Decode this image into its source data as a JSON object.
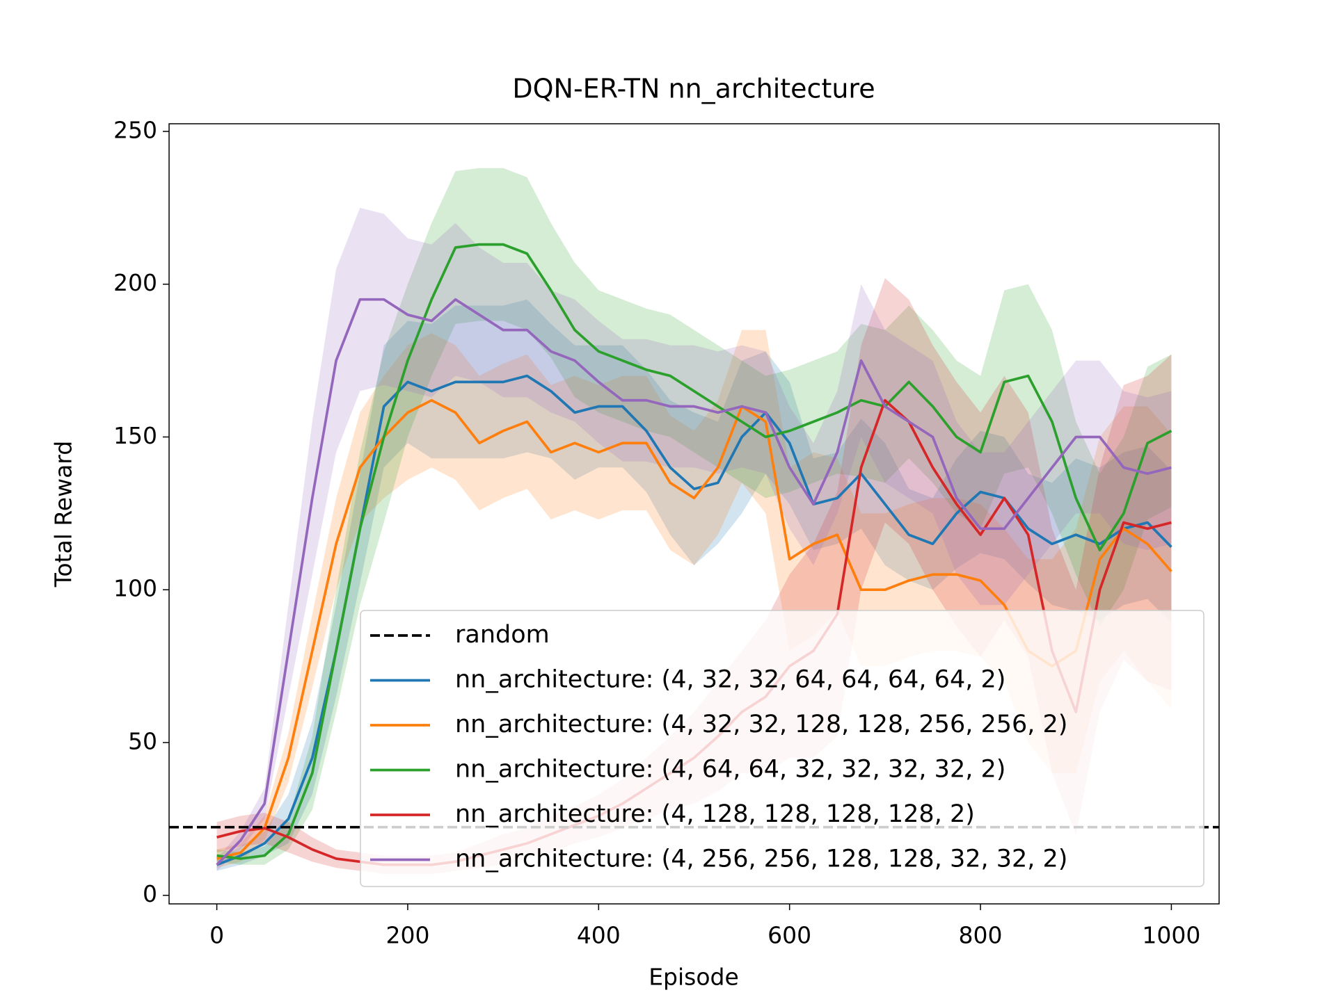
{
  "chart_data": {
    "type": "line",
    "title": "DQN-ER-TN nn_architecture",
    "x_label": "Episode",
    "y_label": "Total Reward",
    "x": [
      0,
      25,
      50,
      75,
      100,
      125,
      150,
      175,
      200,
      225,
      250,
      275,
      300,
      325,
      350,
      375,
      400,
      425,
      450,
      475,
      500,
      525,
      550,
      575,
      600,
      625,
      650,
      675,
      700,
      725,
      750,
      775,
      800,
      825,
      850,
      875,
      900,
      925,
      950,
      975,
      1000
    ],
    "baseline": {
      "name": "random",
      "value": 22.3,
      "color": "#000000"
    },
    "series": [
      {
        "name": "nn_architecture: (4, 32, 32, 64, 64, 64, 64, 2)",
        "color": "#1f77b4",
        "values": [
          10,
          13,
          17,
          25,
          45,
          80,
          120,
          160,
          168,
          165,
          168,
          168,
          168,
          170,
          165,
          158,
          160,
          160,
          152,
          140,
          133,
          135,
          150,
          158,
          148,
          128,
          130,
          138,
          128,
          118,
          115,
          125,
          132,
          130,
          120,
          115,
          118,
          115,
          120,
          122,
          114
        ],
        "errors": [
          2,
          3,
          4,
          8,
          12,
          15,
          18,
          20,
          20,
          22,
          25,
          25,
          25,
          25,
          22,
          22,
          20,
          20,
          20,
          22,
          25,
          20,
          25,
          20,
          20,
          15,
          15,
          18,
          20,
          15,
          15,
          18,
          20,
          20,
          18,
          20,
          25,
          25,
          25,
          25,
          25
        ]
      },
      {
        "name": "nn_architecture: (4, 32, 32, 128, 128, 256, 256, 2)",
        "color": "#ff7f0e",
        "values": [
          12,
          14,
          22,
          45,
          80,
          115,
          140,
          150,
          158,
          162,
          158,
          148,
          152,
          155,
          145,
          148,
          145,
          148,
          148,
          135,
          130,
          140,
          160,
          155,
          110,
          115,
          118,
          100,
          100,
          103,
          105,
          105,
          103,
          95,
          80,
          75,
          80,
          110,
          120,
          115,
          106
        ],
        "errors": [
          3,
          3,
          4,
          8,
          12,
          15,
          18,
          20,
          22,
          22,
          22,
          22,
          22,
          22,
          22,
          22,
          22,
          22,
          22,
          22,
          22,
          22,
          25,
          30,
          30,
          30,
          25,
          25,
          25,
          25,
          25,
          25,
          25,
          25,
          30,
          35,
          40,
          40,
          40,
          45,
          45
        ]
      },
      {
        "name": "nn_architecture: (4, 64, 64, 32, 32, 32, 32, 2)",
        "color": "#2ca02c",
        "values": [
          13,
          12,
          13,
          20,
          40,
          80,
          120,
          150,
          175,
          195,
          212,
          213,
          213,
          210,
          198,
          185,
          178,
          175,
          172,
          170,
          165,
          160,
          155,
          150,
          152,
          155,
          158,
          162,
          160,
          168,
          160,
          150,
          145,
          168,
          170,
          155,
          130,
          113,
          125,
          148,
          152
        ],
        "errors": [
          2,
          2,
          3,
          5,
          12,
          20,
          25,
          28,
          25,
          25,
          25,
          25,
          25,
          25,
          22,
          22,
          20,
          20,
          20,
          20,
          20,
          20,
          20,
          20,
          20,
          20,
          20,
          25,
          25,
          25,
          25,
          25,
          25,
          30,
          30,
          30,
          25,
          25,
          25,
          25,
          25
        ]
      },
      {
        "name": "nn_architecture: (4, 128, 128, 128, 128, 2)",
        "color": "#d62728",
        "values": [
          19,
          21,
          22,
          19,
          15,
          12,
          11,
          10,
          10,
          10,
          11,
          13,
          15,
          17,
          20,
          23,
          26,
          30,
          35,
          40,
          45,
          52,
          60,
          65,
          75,
          80,
          92,
          140,
          162,
          155,
          140,
          128,
          118,
          130,
          118,
          80,
          60,
          100,
          122,
          120,
          122
        ],
        "errors": [
          5,
          5,
          5,
          5,
          4,
          3,
          3,
          3,
          3,
          3,
          3,
          4,
          5,
          5,
          6,
          6,
          7,
          8,
          10,
          12,
          15,
          18,
          20,
          25,
          30,
          35,
          40,
          40,
          40,
          40,
          40,
          40,
          40,
          40,
          40,
          40,
          40,
          40,
          45,
          50,
          55
        ]
      },
      {
        "name": "nn_architecture: (4, 256, 256, 128, 128, 32, 32, 2)",
        "color": "#9467bd",
        "values": [
          10,
          18,
          30,
          80,
          130,
          175,
          195,
          195,
          190,
          188,
          195,
          190,
          185,
          185,
          178,
          175,
          168,
          162,
          162,
          160,
          160,
          158,
          160,
          158,
          140,
          128,
          145,
          175,
          160,
          155,
          150,
          130,
          120,
          120,
          130,
          140,
          150,
          150,
          140,
          138,
          140
        ],
        "errors": [
          2,
          3,
          5,
          15,
          25,
          30,
          30,
          28,
          25,
          25,
          25,
          22,
          22,
          22,
          20,
          20,
          20,
          20,
          20,
          20,
          20,
          20,
          20,
          20,
          20,
          20,
          20,
          25,
          25,
          25,
          25,
          25,
          25,
          25,
          25,
          25,
          25,
          25,
          25,
          25,
          25
        ]
      }
    ],
    "xlim": [
      -50,
      1050
    ],
    "ylim": [
      -2.8,
      252.5
    ],
    "xticks": [
      0,
      200,
      400,
      600,
      800,
      1000
    ],
    "yticks": [
      0,
      50,
      100,
      150,
      200,
      250
    ],
    "legend": "lower right"
  }
}
